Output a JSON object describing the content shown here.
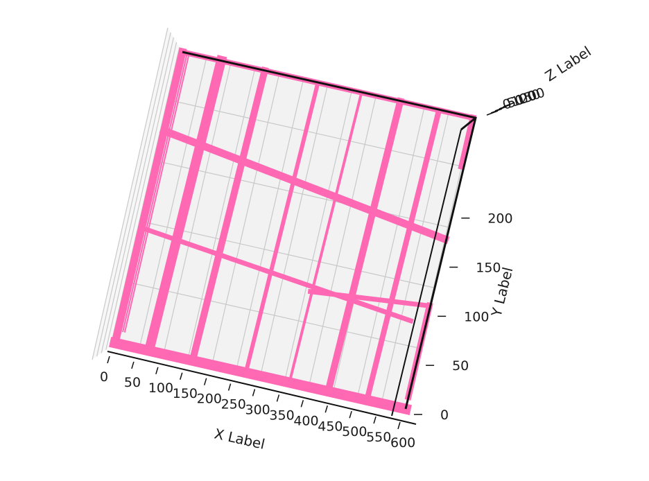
{
  "chart_data": {
    "type": "3d-bar",
    "xlabel": "X Label",
    "ylabel": "Y Label",
    "zlabel": "Z Label",
    "x_ticks": [
      "0",
      "50",
      "100",
      "150",
      "200",
      "250",
      "300",
      "350",
      "400",
      "450",
      "500",
      "550",
      "600"
    ],
    "y_ticks": [
      "0",
      "50",
      "100",
      "150",
      "200"
    ],
    "z_ticks": [
      "0",
      "50",
      "100",
      "150",
      "200"
    ],
    "xlim": [
      0,
      600
    ],
    "ylim": [
      0,
      240
    ],
    "bar_color": "#ff69b4",
    "pane_color": "#f2f2f2",
    "grid": true
  }
}
